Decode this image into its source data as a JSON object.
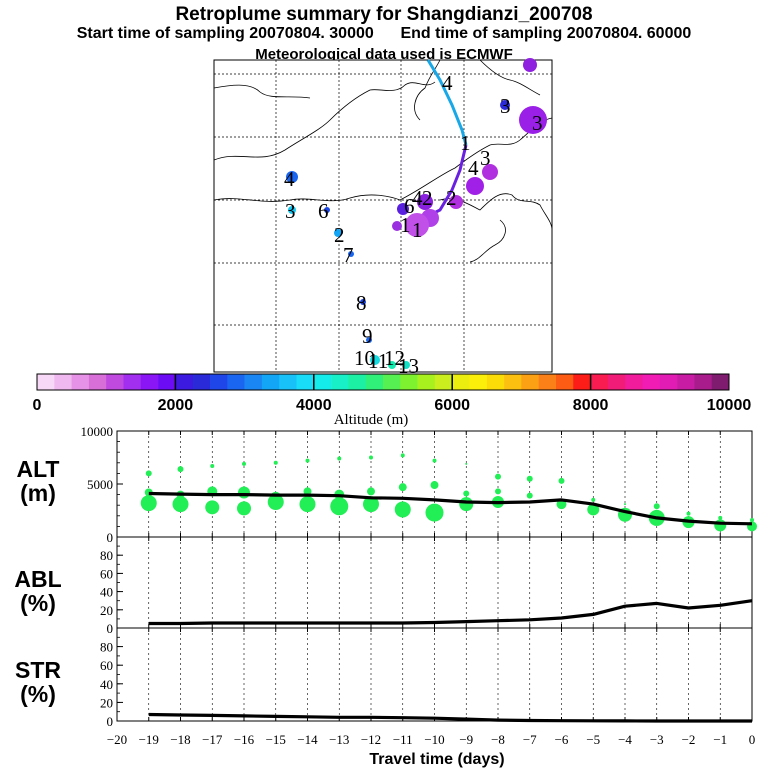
{
  "title": "Retroplume summary for Shangdianzi_200708",
  "start_time": "Start time of sampling 20070804. 30000",
  "end_time": "End time of sampling 20070804. 60000",
  "met_data": "Meteorological data used is ECMWF",
  "colors": {
    "altitude_scale": [
      "#f7d8f7",
      "#efb8ef",
      "#e692e6",
      "#d86ed8",
      "#c04ae0",
      "#a22ef0",
      "#8a16f5",
      "#6c0cf5",
      "#3c1ae0",
      "#2a2ad8",
      "#1f46e8",
      "#1a66f0",
      "#1a86f4",
      "#14a6f6",
      "#18c2f8",
      "#18dcf8",
      "#14ecec",
      "#18f0c8",
      "#1cf0a4",
      "#30f07a",
      "#56f052",
      "#7ef22e",
      "#a8f01e",
      "#caee1e",
      "#ecee10",
      "#fcf00a",
      "#fcdc08",
      "#fcc010",
      "#fca014",
      "#fc8018",
      "#fc5c14",
      "#fc1c18",
      "#f81c50",
      "#f01c78",
      "#f01c9c",
      "#f01cb4",
      "#e01cb4",
      "#c81ca4",
      "#a81c8c",
      "#801c70"
    ],
    "scatter": "#22ee55",
    "line": "#000000"
  },
  "map": {
    "trajectory_labels": [
      "1",
      "1",
      "2",
      "3",
      "4",
      "1",
      "4",
      "3",
      "3",
      "2",
      "4",
      "6",
      "3",
      "6",
      "4",
      "2",
      "7",
      "8",
      "9",
      "10",
      "11",
      "12",
      "13"
    ]
  },
  "colorbar": {
    "ticks": [
      "0",
      "2000",
      "4000",
      "6000",
      "8000",
      "10000"
    ],
    "label": "Altitude (m)",
    "tick_values": [
      0,
      2000,
      4000,
      6000,
      8000,
      10000
    ]
  },
  "chart_data": [
    {
      "type": "line",
      "panel": "ALT",
      "ylabel": "ALT\n(m)",
      "ylabel_line1": "ALT",
      "ylabel_line2": "(m)",
      "ylim": [
        0,
        10000
      ],
      "yticks": [
        "0",
        "5000",
        "10000"
      ],
      "ytick_values": [
        0,
        5000,
        10000
      ],
      "x": [
        -19,
        -18,
        -17,
        -16,
        -15,
        -14,
        -13,
        -12,
        -11,
        -10,
        -9,
        -8,
        -7,
        -6,
        -5,
        -4,
        -3,
        -2,
        -1,
        0
      ],
      "values": [
        4100,
        4050,
        4000,
        4000,
        3950,
        3950,
        3900,
        3700,
        3650,
        3500,
        3300,
        3250,
        3300,
        3500,
        3100,
        2400,
        1800,
        1500,
        1300,
        1250
      ],
      "scatter_series": {
        "name": "plume altitude clusters",
        "x": [
          -19,
          -19,
          -19,
          -18,
          -18,
          -18,
          -17,
          -17,
          -17,
          -16,
          -16,
          -16,
          -15,
          -15,
          -15,
          -14,
          -14,
          -14,
          -13,
          -13,
          -13,
          -12,
          -12,
          -12,
          -11,
          -11,
          -11,
          -10,
          -10,
          -10,
          -9,
          -9,
          -9,
          -8,
          -8,
          -8,
          -7,
          -7,
          -6,
          -6,
          -5,
          -5,
          -4,
          -4,
          -3,
          -3,
          -2,
          -2,
          -1,
          -1,
          0,
          0
        ],
        "y": [
          6000,
          4200,
          3200,
          6400,
          4000,
          3100,
          6700,
          4300,
          2800,
          6900,
          4200,
          2700,
          7000,
          3800,
          3300,
          7200,
          4300,
          3100,
          7400,
          4000,
          2900,
          7500,
          4300,
          3100,
          7700,
          4700,
          2600,
          7200,
          4900,
          2300,
          6900,
          4100,
          3100,
          5700,
          4300,
          3300,
          5500,
          3900,
          5300,
          3100,
          3500,
          2600,
          3100,
          2100,
          2900,
          1800,
          2200,
          1400,
          1800,
          1100,
          1600,
          1000
        ],
        "sizes": [
          3,
          4,
          8,
          3,
          4,
          8,
          2,
          5,
          7,
          2,
          6,
          7,
          2,
          5,
          8,
          2,
          4,
          8,
          2,
          5,
          9,
          2,
          4,
          8,
          2,
          4,
          8,
          2,
          4,
          9,
          1,
          3,
          7,
          3,
          3,
          6,
          3,
          3,
          3,
          5,
          2,
          6,
          1,
          7,
          3,
          8,
          2,
          6,
          2,
          6,
          2,
          5
        ]
      }
    },
    {
      "type": "line",
      "panel": "ABL",
      "ylabel_line1": "ABL",
      "ylabel_line2": "(%)",
      "ylim": [
        0,
        100
      ],
      "yticks": [
        "0",
        "20",
        "40",
        "60",
        "80"
      ],
      "ytick_values": [
        0,
        20,
        40,
        60,
        80
      ],
      "x": [
        -19,
        -18,
        -17,
        -16,
        -15,
        -14,
        -13,
        -12,
        -11,
        -10,
        -9,
        -8,
        -7,
        -6,
        -5,
        -4,
        -3,
        -2,
        -1,
        0
      ],
      "values": [
        5,
        5,
        5.5,
        5.5,
        5.5,
        5.5,
        5.5,
        5.5,
        5.5,
        6,
        7,
        8,
        9,
        11,
        15,
        24,
        27,
        22,
        25,
        30
      ]
    },
    {
      "type": "line",
      "panel": "STR",
      "ylabel_line1": "STR",
      "ylabel_line2": "(%)",
      "ylim": [
        0,
        100
      ],
      "yticks": [
        "0",
        "20",
        "40",
        "60",
        "80"
      ],
      "ytick_values": [
        0,
        20,
        40,
        60,
        80
      ],
      "xlabel": "Travel time (days)",
      "xlim": [
        -20,
        0
      ],
      "xticks": [
        "−20",
        "−19",
        "−18",
        "−17",
        "−16",
        "−15",
        "−14",
        "−13",
        "−12",
        "−11",
        "−10",
        "−9",
        "−8",
        "−7",
        "−6",
        "−5",
        "−4",
        "−3",
        "−2",
        "−1",
        "0"
      ],
      "x": [
        -19,
        -18,
        -17,
        -16,
        -15,
        -14,
        -13,
        -12,
        -11,
        -10,
        -9,
        -8,
        -7,
        -6,
        -5,
        -4,
        -3,
        -2,
        -1,
        0
      ],
      "values": [
        7,
        6.5,
        6,
        5.5,
        5,
        4.5,
        4,
        4,
        3.5,
        3,
        2,
        1,
        0.5,
        0.3,
        0.2,
        0.1,
        0,
        0,
        0,
        0
      ]
    }
  ]
}
